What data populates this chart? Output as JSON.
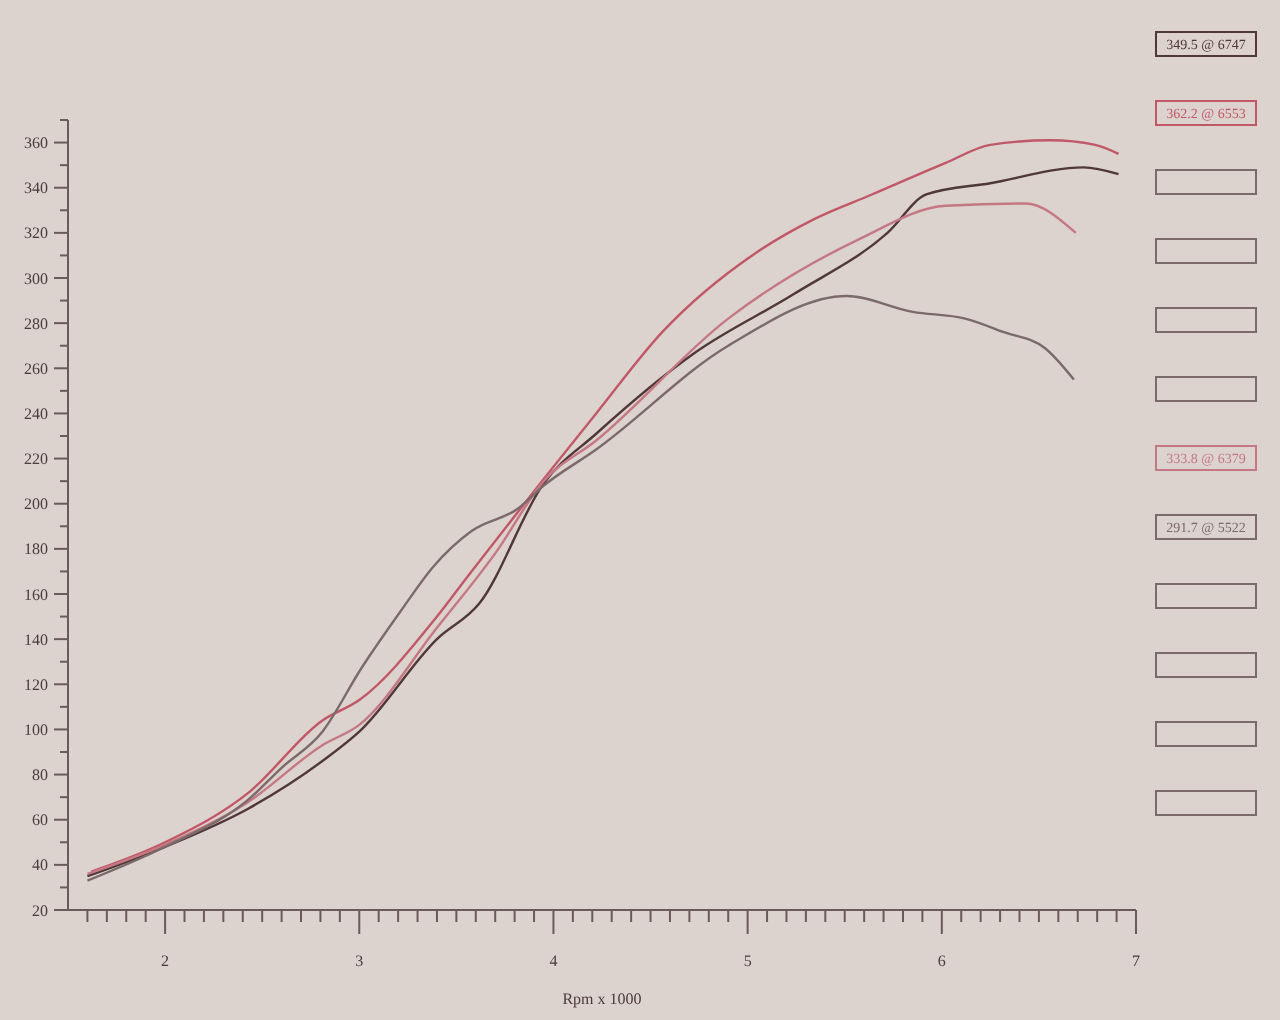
{
  "chart_data": {
    "type": "line",
    "xlabel": "Rpm x 1000",
    "xlim": [
      1.5,
      7
    ],
    "ylim": [
      20,
      370
    ],
    "xticks": [
      {
        "value": 1.6,
        "label": null
      },
      {
        "value": 1.7,
        "label": null
      },
      {
        "value": 1.8,
        "label": null
      },
      {
        "value": 1.9,
        "label": null
      },
      2,
      {
        "value": 2.1,
        "label": null
      },
      {
        "value": 2.2,
        "label": null
      },
      {
        "value": 2.3,
        "label": null
      },
      {
        "value": 2.4,
        "label": null
      },
      {
        "value": 2.5,
        "label": null
      },
      {
        "value": 2.6,
        "label": null
      },
      {
        "value": 2.7,
        "label": null
      },
      {
        "value": 2.8,
        "label": null
      },
      {
        "value": 2.9,
        "label": null
      },
      3,
      {
        "value": 3.1,
        "label": null
      },
      {
        "value": 3.2,
        "label": null
      },
      {
        "value": 3.3,
        "label": null
      },
      {
        "value": 3.4,
        "label": null
      },
      {
        "value": 3.5,
        "label": null
      },
      {
        "value": 3.6,
        "label": null
      },
      {
        "value": 3.7,
        "label": null
      },
      {
        "value": 3.8,
        "label": null
      },
      {
        "value": 3.9,
        "label": null
      },
      4,
      {
        "value": 4.1,
        "label": null
      },
      {
        "value": 4.2,
        "label": null
      },
      {
        "value": 4.3,
        "label": null
      },
      {
        "value": 4.4,
        "label": null
      },
      {
        "value": 4.5,
        "label": null
      },
      {
        "value": 4.6,
        "label": null
      },
      {
        "value": 4.7,
        "label": null
      },
      {
        "value": 4.8,
        "label": null
      },
      {
        "value": 4.9,
        "label": null
      },
      5,
      {
        "value": 5.1,
        "label": null
      },
      {
        "value": 5.2,
        "label": null
      },
      {
        "value": 5.3,
        "label": null
      },
      {
        "value": 5.4,
        "label": null
      },
      {
        "value": 5.5,
        "label": null
      },
      {
        "value": 5.6,
        "label": null
      },
      {
        "value": 5.7,
        "label": null
      },
      {
        "value": 5.8,
        "label": null
      },
      {
        "value": 5.9,
        "label": null
      },
      6,
      {
        "value": 6.1,
        "label": null
      },
      {
        "value": 6.2,
        "label": null
      },
      {
        "value": 6.3,
        "label": null
      },
      {
        "value": 6.4,
        "label": null
      },
      {
        "value": 6.5,
        "label": null
      },
      {
        "value": 6.6,
        "label": null
      },
      {
        "value": 6.7,
        "label": null
      },
      {
        "value": 6.8,
        "label": null
      },
      {
        "value": 6.9,
        "label": null
      },
      7
    ],
    "yticks": [
      20,
      {
        "value": 30,
        "label": null
      },
      40,
      {
        "value": 50,
        "label": null
      },
      60,
      {
        "value": 70,
        "label": null
      },
      80,
      {
        "value": 90,
        "label": null
      },
      100,
      {
        "value": 110,
        "label": null
      },
      120,
      {
        "value": 130,
        "label": null
      },
      140,
      {
        "value": 150,
        "label": null
      },
      160,
      {
        "value": 170,
        "label": null
      },
      180,
      {
        "value": 190,
        "label": null
      },
      200,
      {
        "value": 210,
        "label": null
      },
      220,
      {
        "value": 230,
        "label": null
      },
      240,
      {
        "value": 250,
        "label": null
      },
      260,
      {
        "value": 270,
        "label": null
      },
      280,
      {
        "value": 290,
        "label": null
      },
      300,
      {
        "value": 310,
        "label": null
      },
      320,
      {
        "value": 330,
        "label": null
      },
      340,
      {
        "value": 350,
        "label": null
      },
      360,
      {
        "value": 370,
        "label": null
      }
    ],
    "grid": false,
    "legend": "right",
    "marker": "none",
    "line_style": "solid",
    "series": [
      {
        "name": "349.5 @ 6747",
        "color": "#503838",
        "x": [
          1.6,
          2.0,
          2.43,
          2.81,
          3.0,
          3.4,
          3.62,
          3.95,
          4.22,
          4.73,
          5.24,
          5.72,
          5.92,
          6.25,
          6.73,
          6.91
        ],
        "values": [
          35,
          48,
          65,
          86,
          99,
          140,
          156,
          209,
          231,
          267,
          293,
          320,
          337,
          342,
          349,
          346
        ]
      },
      {
        "name": "362.2 @ 6553",
        "color": "#c05868",
        "x": [
          1.62,
          2.0,
          2.43,
          2.81,
          3.0,
          3.4,
          3.56,
          3.95,
          4.22,
          4.56,
          5.04,
          5.34,
          5.64,
          6.02,
          6.25,
          6.56,
          6.79,
          6.91
        ],
        "values": [
          37,
          50,
          72,
          104,
          113,
          150,
          168,
          211,
          240,
          276,
          311,
          326,
          337,
          351,
          359,
          361,
          359,
          355
        ]
      },
      {
        "name": "333.8 @ 6379",
        "color": "#c47884",
        "x": [
          1.6,
          2.0,
          2.43,
          2.81,
          3.0,
          3.4,
          3.7,
          3.95,
          4.22,
          4.9,
          5.57,
          6.02,
          6.43,
          6.69
        ],
        "values": [
          36,
          49,
          68,
          93,
          102,
          145,
          178,
          210,
          228,
          282,
          317,
          332,
          333,
          320
        ]
      },
      {
        "name": "291.7 @ 5522",
        "color": "#7c6a6a",
        "x": [
          1.6,
          2.0,
          2.43,
          2.6,
          2.81,
          3.01,
          3.21,
          3.38,
          3.58,
          3.82,
          3.95,
          4.22,
          4.9,
          5.51,
          5.85,
          6.12,
          6.32,
          6.53,
          6.68
        ],
        "values": [
          33,
          48,
          69,
          83,
          99,
          127,
          152,
          172,
          188,
          198,
          208,
          224,
          270,
          292,
          285,
          282,
          276,
          269,
          255
        ]
      }
    ]
  }
}
